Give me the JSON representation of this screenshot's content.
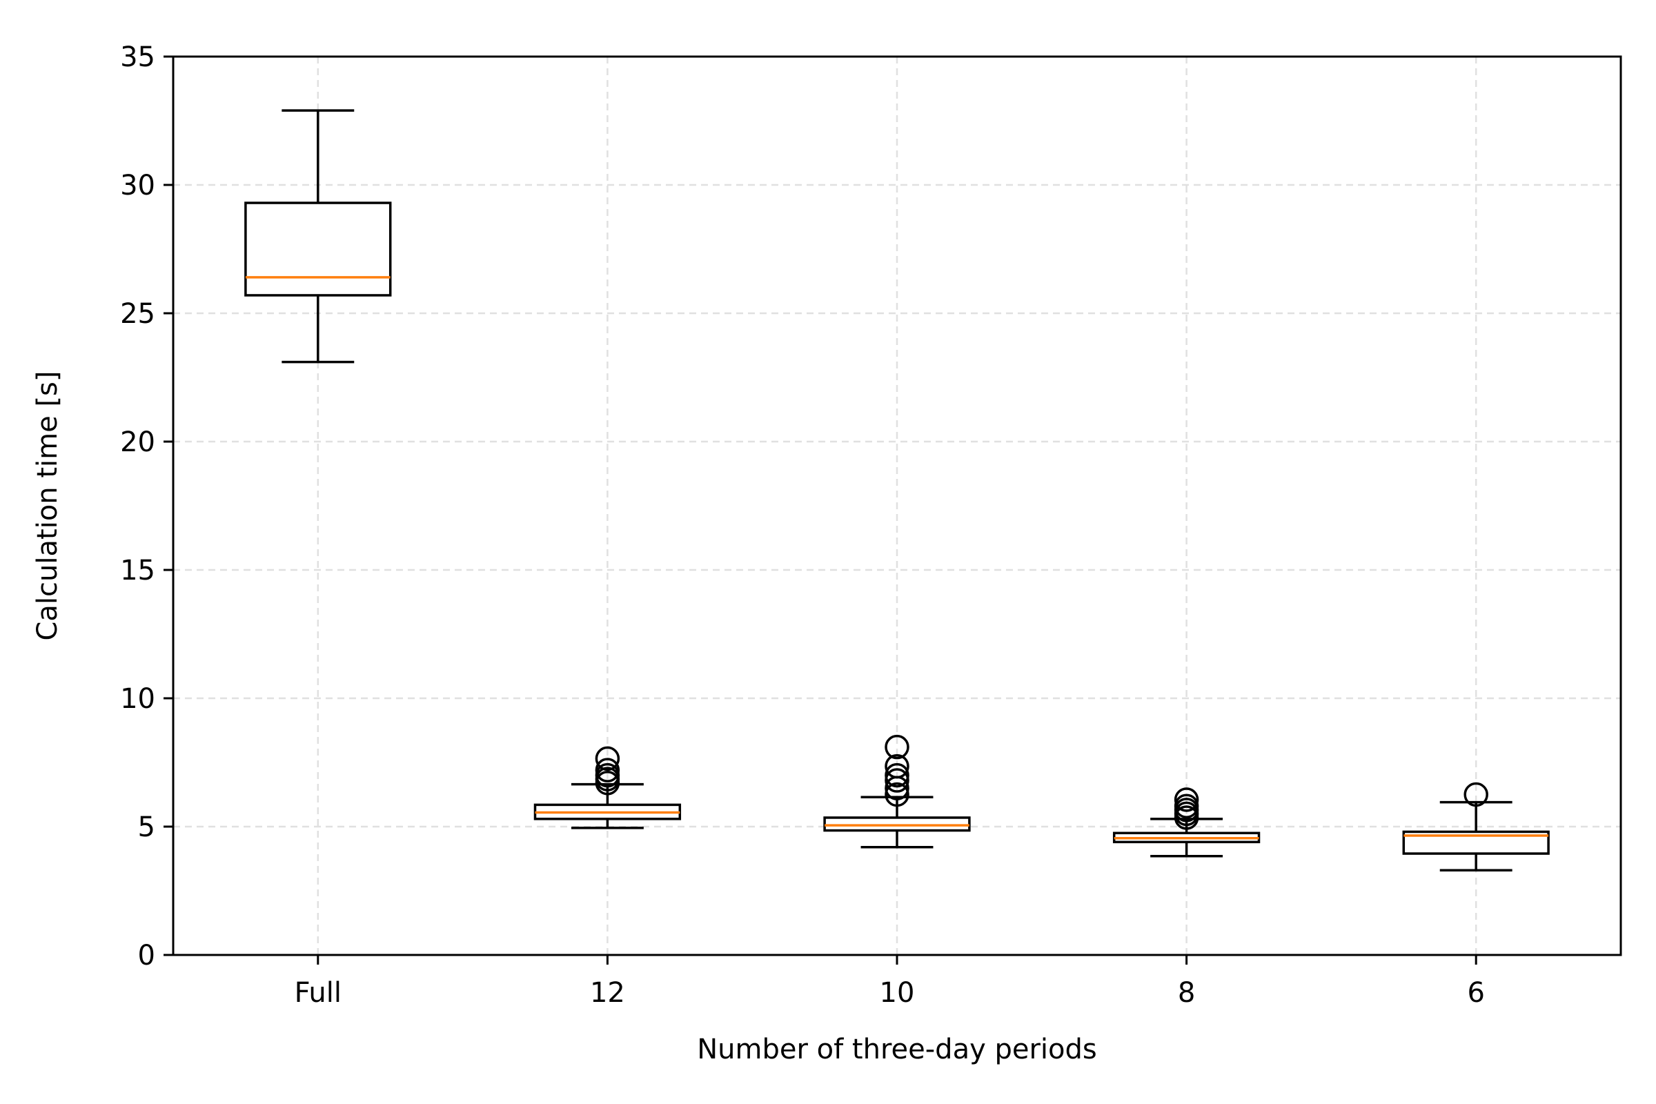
{
  "chart_data": {
    "type": "box",
    "title": "",
    "xlabel": "Number of three-day periods",
    "ylabel": "Calculation time [s]",
    "ylim": [
      0,
      35
    ],
    "yticks": [
      0,
      5,
      10,
      15,
      20,
      25,
      30,
      35
    ],
    "ytick_labels": [
      "0",
      "5",
      "10",
      "15",
      "20",
      "25",
      "30",
      "35"
    ],
    "grid": true,
    "categories": [
      "Full",
      "12",
      "10",
      "8",
      "6"
    ],
    "boxes": [
      {
        "label": "Full",
        "whisker_low": 23.1,
        "q1": 25.7,
        "median": 26.4,
        "q3": 29.3,
        "whisker_high": 32.9,
        "outliers": []
      },
      {
        "label": "12",
        "whisker_low": 4.95,
        "q1": 5.3,
        "median": 5.55,
        "q3": 5.85,
        "whisker_high": 6.65,
        "outliers": [
          6.7,
          6.85,
          7.0,
          7.2,
          7.65
        ]
      },
      {
        "label": "10",
        "whisker_low": 4.2,
        "q1": 4.85,
        "median": 5.05,
        "q3": 5.35,
        "whisker_high": 6.15,
        "outliers": [
          6.25,
          6.5,
          6.8,
          7.0,
          7.35,
          8.1
        ]
      },
      {
        "label": "8",
        "whisker_low": 3.85,
        "q1": 4.4,
        "median": 4.55,
        "q3": 4.75,
        "whisker_high": 5.3,
        "outliers": [
          5.35,
          5.5,
          5.65,
          5.8,
          6.05
        ]
      },
      {
        "label": "6",
        "whisker_low": 3.3,
        "q1": 3.95,
        "median": 4.65,
        "q3": 4.8,
        "whisker_high": 5.95,
        "outliers": [
          6.25
        ]
      }
    ],
    "colors": {
      "box": "#000000",
      "median": "#ff7f0e",
      "grid": "#e0e0e0"
    }
  }
}
